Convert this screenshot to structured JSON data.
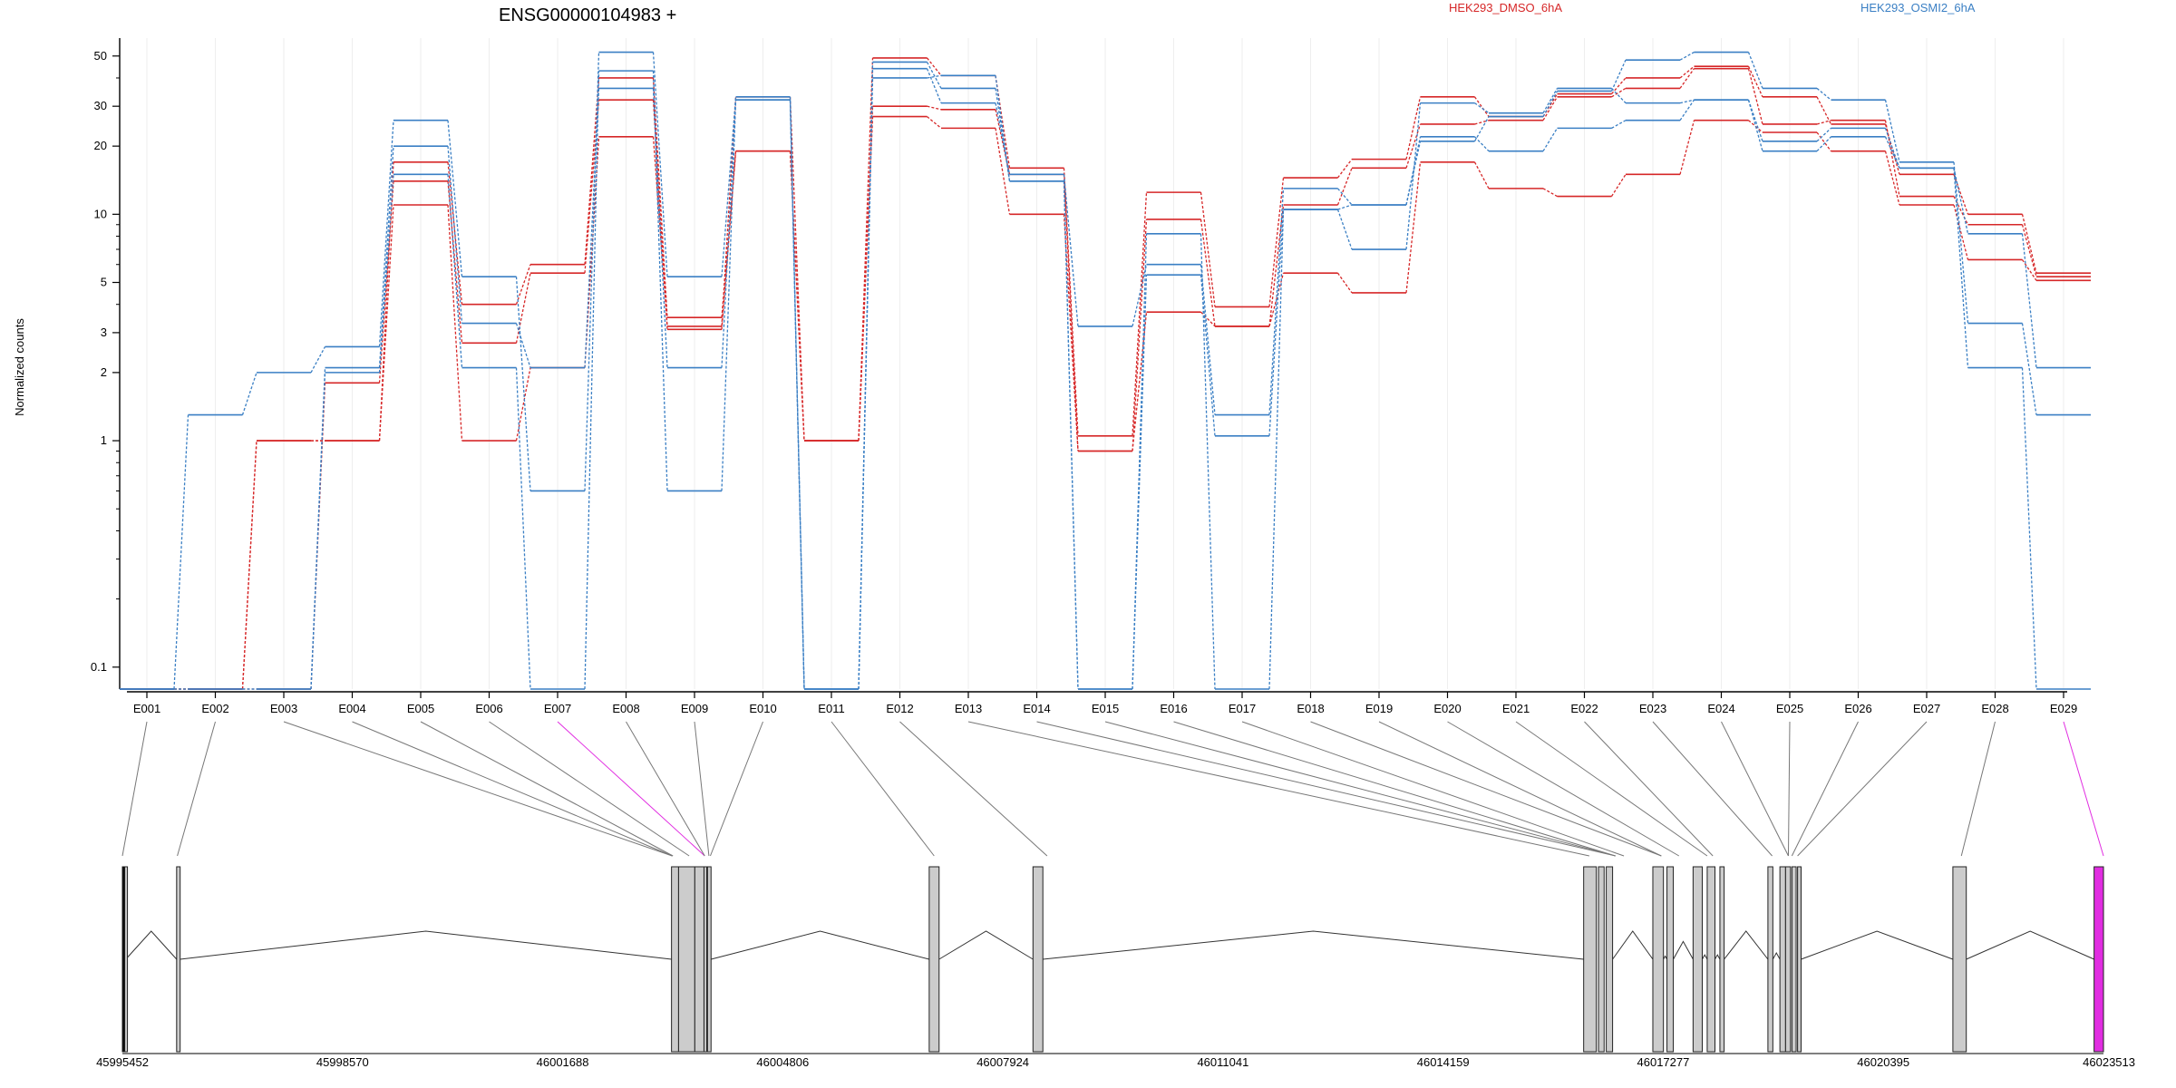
{
  "chart_data": {
    "type": "line",
    "title": "ENSG00000104983 +",
    "ylabel": "Normalized counts",
    "y_scale": "log",
    "ylim": [
      0.08,
      60
    ],
    "y_ticks": [
      0.1,
      1,
      2,
      3,
      5,
      10,
      20,
      30,
      50
    ],
    "y_tick_labels": [
      "0.1",
      "1",
      "2",
      "3",
      "5",
      "10",
      "20",
      "30",
      "50"
    ],
    "grid": "vertical, light",
    "legend": [
      {
        "label": "HEK293_DMSO_6hA",
        "color": "#d62728"
      },
      {
        "label": "HEK293_OSMI2_6hA",
        "color": "#3a7fc4"
      }
    ],
    "legend_position": "top-right",
    "categories": [
      "E001",
      "E002",
      "E003",
      "E004",
      "E005",
      "E006",
      "E007",
      "E008",
      "E009",
      "E010",
      "E011",
      "E012",
      "E013",
      "E014",
      "E015",
      "E016",
      "E017",
      "E018",
      "E019",
      "E020",
      "E021",
      "E022",
      "E023",
      "E024",
      "E025",
      "E026",
      "E027",
      "E028",
      "E029"
    ],
    "series": [
      {
        "group": "HEK293_DMSO_6hA",
        "color": "#d62728",
        "values": [
          0.08,
          0.08,
          1,
          1,
          17,
          4,
          6,
          40,
          3.5,
          19,
          1,
          49,
          41,
          16,
          1.05,
          12.5,
          3.9,
          14.5,
          17.5,
          33,
          27,
          34,
          40,
          45,
          33,
          25,
          15,
          10,
          5.5
        ]
      },
      {
        "group": "HEK293_DMSO_6hA",
        "color": "#d62728",
        "values": [
          0.08,
          0.08,
          0.08,
          1.8,
          14,
          2.7,
          5.5,
          32,
          3.1,
          19,
          1,
          30,
          29,
          15,
          0.9,
          9.5,
          3.2,
          11,
          16,
          25,
          26,
          33,
          36,
          44,
          25,
          26,
          12,
          9,
          5.3
        ]
      },
      {
        "group": "HEK293_DMSO_6hA",
        "color": "#d62728",
        "values": [
          0.08,
          0.08,
          1,
          1,
          11,
          1,
          2.1,
          22,
          3.2,
          33,
          1,
          27,
          24,
          10,
          0.9,
          3.7,
          3.2,
          5.5,
          4.5,
          17,
          13,
          12,
          15,
          26,
          23,
          19,
          11,
          6.3,
          5.1
        ]
      },
      {
        "group": "HEK293_OSMI2_6hA",
        "color": "#3a7fc4",
        "values": [
          0.08,
          1.3,
          2,
          2.6,
          26,
          5.3,
          0.6,
          52,
          5.3,
          33,
          0.08,
          44,
          31,
          15,
          3.2,
          6,
          1.3,
          13,
          11,
          21,
          27,
          35,
          48,
          52,
          36,
          32,
          17,
          3.3,
          1.3
        ]
      },
      {
        "group": "HEK293_OSMI2_6hA",
        "color": "#3a7fc4",
        "values": [
          0.08,
          0.08,
          0.08,
          2.1,
          20,
          3.3,
          2.1,
          36,
          2.1,
          32,
          0.08,
          47,
          36,
          14,
          0.08,
          5.4,
          1.05,
          10.5,
          7,
          31,
          28,
          36,
          31,
          32,
          21,
          24,
          16,
          2.1,
          0.08
        ]
      },
      {
        "group": "HEK293_OSMI2_6hA",
        "color": "#3a7fc4",
        "values": [
          0.08,
          0.08,
          0.08,
          2,
          15,
          2.1,
          0.08,
          43,
          0.6,
          32,
          0.08,
          40,
          41,
          14,
          0.08,
          8.2,
          0.08,
          10.5,
          11,
          22,
          19,
          24,
          26,
          32,
          19,
          22,
          16,
          8.2,
          2.1
        ]
      }
    ]
  },
  "gene_model": {
    "x_tick_labels": [
      "45995452",
      "45998570",
      "46001688",
      "46004806",
      "46007924",
      "46011041",
      "46014159",
      "46017277",
      "46020395",
      "46023513"
    ],
    "highlight_color": "#e12de1",
    "exon_color": "#cccccc",
    "exon_genomic_positions": [
      45995452,
      45996230,
      46003240,
      46003240,
      46003250,
      46003480,
      46003700,
      46003700,
      46003760,
      46003780,
      46006950,
      46008550,
      46016230,
      46016600,
      46016600,
      46016600,
      46016720,
      46017250,
      46017250,
      46017500,
      46017900,
      46017980,
      46018820,
      46019050,
      46019050,
      46019100,
      46019180,
      46021500,
      46023513
    ]
  }
}
